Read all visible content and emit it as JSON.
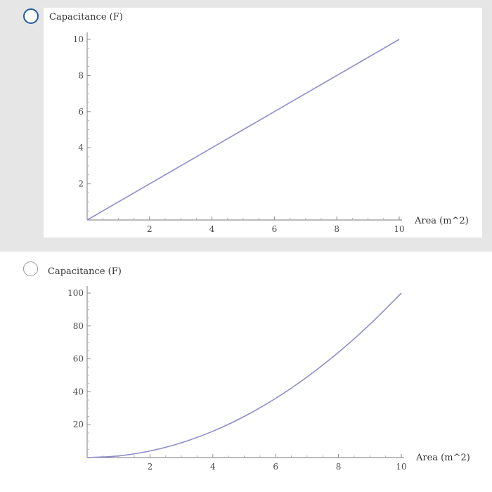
{
  "colors": {
    "series": "#8e8ccc",
    "selected_radio": "#1e5aa8",
    "unselected_radio": "#9a9a9a",
    "selected_background": "#e6e6e6"
  },
  "options": [
    {
      "selected": true,
      "icon": "radio-button-icon"
    },
    {
      "selected": false,
      "icon": "radio-button-icon"
    }
  ],
  "chart_data": [
    {
      "type": "line",
      "ylabel": "Capacitance (F)",
      "xlabel": "Area (m^2)",
      "xlim": [
        0,
        10
      ],
      "ylim": [
        0,
        10
      ],
      "xticks": [
        "2",
        "4",
        "6",
        "8",
        "10"
      ],
      "yticks": [
        "2",
        "4",
        "6",
        "8",
        "10"
      ],
      "grid": false,
      "series": [
        {
          "x": [
            0,
            1,
            2,
            3,
            4,
            5,
            6,
            7,
            8,
            9,
            10
          ],
          "y": [
            0,
            1,
            2,
            3,
            4,
            5,
            6,
            7,
            8,
            9,
            10
          ]
        }
      ]
    },
    {
      "type": "line",
      "ylabel": "Capacitance (F)",
      "xlabel": "Area (m^2)",
      "xlim": [
        0,
        10
      ],
      "ylim": [
        0,
        100
      ],
      "xticks": [
        "2",
        "4",
        "6",
        "8",
        "10"
      ],
      "yticks": [
        "20",
        "40",
        "60",
        "80",
        "100"
      ],
      "grid": false,
      "series": [
        {
          "x": [
            0,
            1,
            2,
            3,
            4,
            5,
            6,
            7,
            8,
            9,
            10
          ],
          "y": [
            0,
            1,
            4,
            9,
            16,
            25,
            36,
            49,
            64,
            81,
            100
          ]
        }
      ]
    }
  ]
}
